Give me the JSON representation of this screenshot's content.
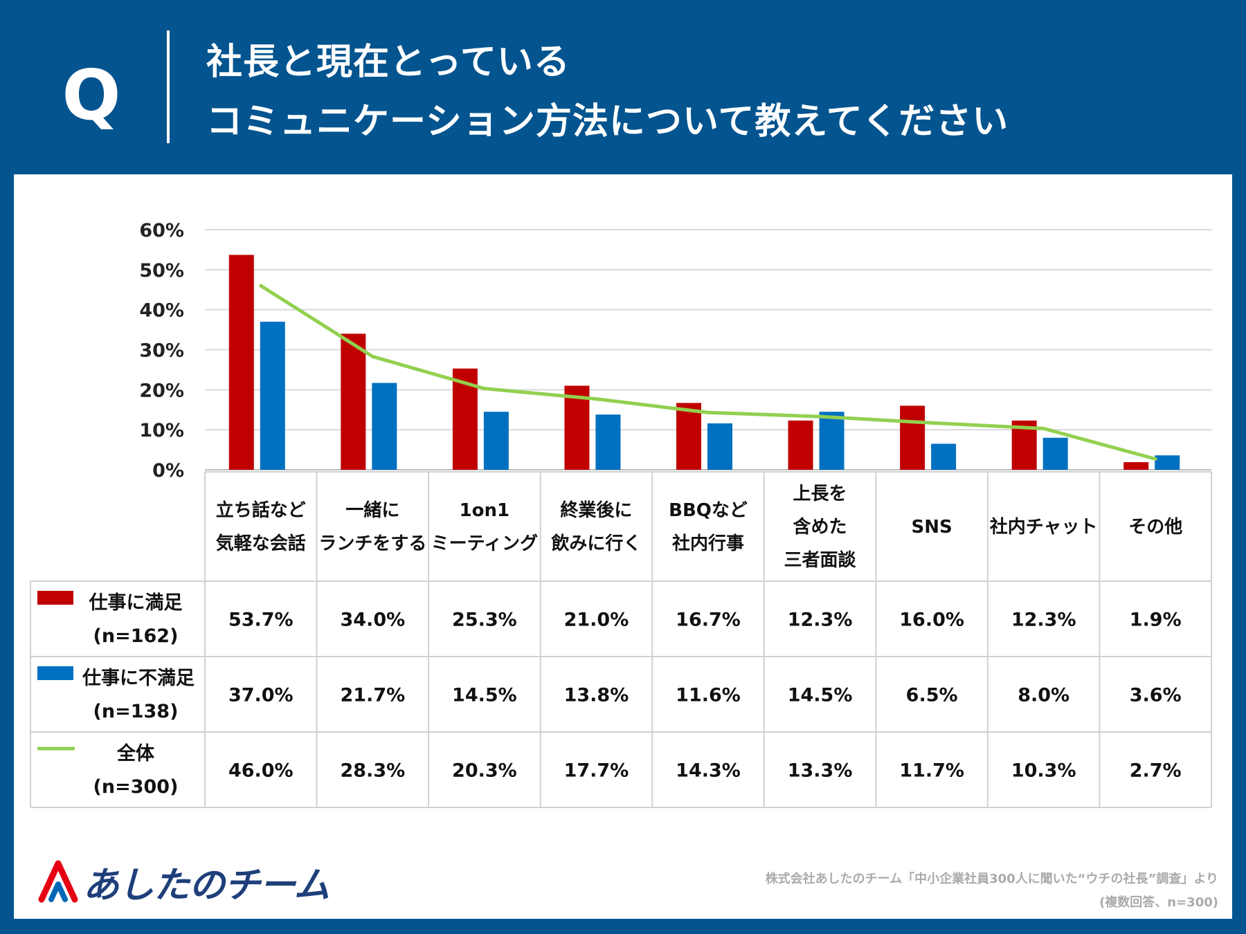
{
  "header": {
    "q_label": "Q",
    "title_line1": "社長と現在とっている",
    "title_line2": "コミュニケーション方法について教えてください"
  },
  "chart_data": {
    "type": "bar",
    "categories": [
      [
        "立ち話など",
        "気軽な会話"
      ],
      [
        "一緒に",
        "ランチをする"
      ],
      [
        "1on1",
        "ミーティング"
      ],
      [
        "終業後に",
        "飲みに行く"
      ],
      [
        "BBQなど",
        "社内行事"
      ],
      [
        "上長を",
        "含めた",
        "三者面談"
      ],
      [
        "SNS"
      ],
      [
        "社内チャット"
      ],
      [
        "その他"
      ]
    ],
    "series": [
      {
        "name": "仕事に満足",
        "n_label": "(n=162)",
        "kind": "bar",
        "color": "#c00000",
        "values": [
          53.7,
          34.0,
          25.3,
          21.0,
          16.7,
          12.3,
          16.0,
          12.3,
          1.9
        ],
        "labels": [
          "53.7%",
          "34.0%",
          "25.3%",
          "21.0%",
          "16.7%",
          "12.3%",
          "16.0%",
          "12.3%",
          "1.9%"
        ]
      },
      {
        "name": "仕事に不満足",
        "n_label": "(n=138)",
        "kind": "bar",
        "color": "#0070c0",
        "values": [
          37.0,
          21.7,
          14.5,
          13.8,
          11.6,
          14.5,
          6.5,
          8.0,
          3.6
        ],
        "labels": [
          "37.0%",
          "21.7%",
          "14.5%",
          "13.8%",
          "11.6%",
          "14.5%",
          "6.5%",
          "8.0%",
          "3.6%"
        ]
      },
      {
        "name": "全体",
        "n_label": "(n=300)",
        "kind": "line",
        "color": "#92d050",
        "values": [
          46.0,
          28.3,
          20.3,
          17.7,
          14.3,
          13.3,
          11.7,
          10.3,
          2.7
        ],
        "labels": [
          "46.0%",
          "28.3%",
          "20.3%",
          "17.7%",
          "14.3%",
          "13.3%",
          "11.7%",
          "10.3%",
          "2.7%"
        ]
      }
    ],
    "yticks": [
      "0%",
      "10%",
      "20%",
      "30%",
      "40%",
      "50%",
      "60%"
    ],
    "ylim": [
      0,
      60
    ],
    "grid": true,
    "legend": "data-table-left"
  },
  "footer": {
    "logo_text": "あしたのチーム",
    "source_line1": "株式会社あしたのチーム「中小企業社員300人に聞いた“ウチの社長”調査」より",
    "source_line2": "(複数回答、n=300)"
  }
}
